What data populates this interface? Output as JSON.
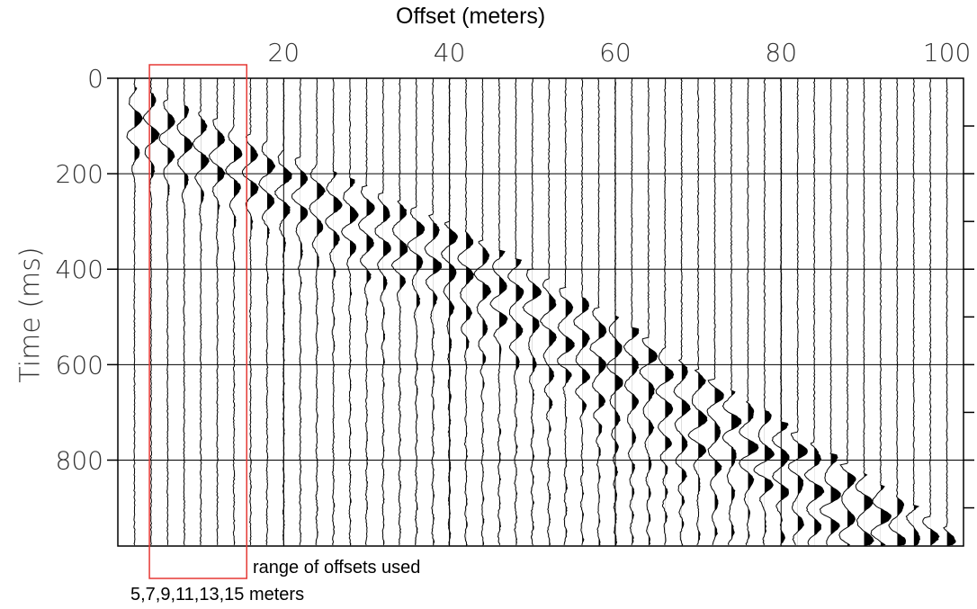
{
  "chart_data": {
    "type": "seismogram",
    "xlabel": "Offset (meters)",
    "ylabel": "Time  (ms)",
    "x_ticks": [
      20,
      40,
      60,
      80,
      100
    ],
    "y_ticks": [
      0,
      200,
      400,
      600,
      800
    ],
    "xlim": [
      0,
      102
    ],
    "ylim": [
      0,
      980
    ],
    "grid": true,
    "traces": {
      "offset_start": 2,
      "offset_end": 100,
      "offset_step": 2
    },
    "first_arrival": {
      "offsets": [
        2,
        10,
        20,
        40,
        60,
        80,
        100
      ],
      "times_ms": [
        40,
        90,
        170,
        320,
        520,
        740,
        960
      ]
    },
    "highlight": {
      "offsets": [
        5,
        7,
        9,
        11,
        13,
        15
      ],
      "color": "#e53935",
      "label": "range of offsets used",
      "offsets_label": "5,7,9,11,13,15 meters"
    }
  }
}
